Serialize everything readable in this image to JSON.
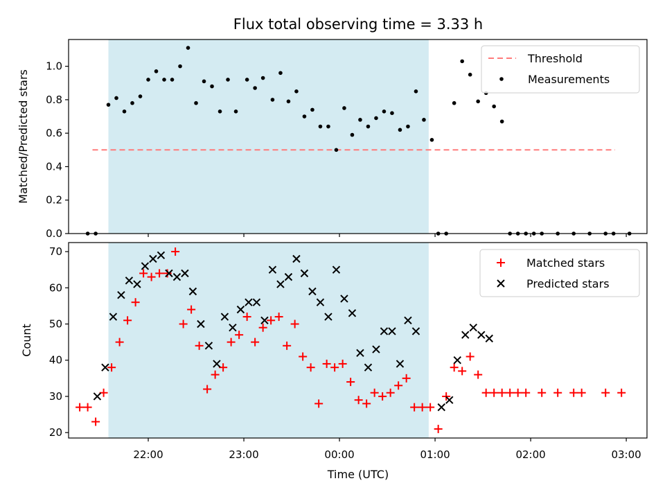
{
  "chart_data": [
    {
      "type": "scatter",
      "title": "Flux total observing time = 3.33 h",
      "xlabel": "",
      "ylabel": "Matched/Predicted stars",
      "ylim": [
        0,
        1.16
      ],
      "yticks": [
        "0.0",
        "0.2",
        "0.4",
        "0.6",
        "0.8",
        "1.0"
      ],
      "shaded_region": {
        "x_start": "21:35",
        "x_end": "00:56",
        "color": "#d4ebf2"
      },
      "threshold": {
        "name": "Threshold",
        "value": 0.5,
        "x_start": "21:25",
        "x_end": "02:53",
        "color": "#ff7b7b"
      },
      "series": [
        {
          "name": "Measurements",
          "color": "#000000",
          "points": [
            [
              "21:22",
              0.0
            ],
            [
              "21:27",
              0.0
            ],
            [
              "21:35",
              0.77
            ],
            [
              "21:40",
              0.81
            ],
            [
              "21:45",
              0.73
            ],
            [
              "21:50",
              0.78
            ],
            [
              "21:55",
              0.82
            ],
            [
              "22:00",
              0.92
            ],
            [
              "22:05",
              0.97
            ],
            [
              "22:10",
              0.92
            ],
            [
              "22:15",
              0.92
            ],
            [
              "22:20",
              1.0
            ],
            [
              "22:25",
              1.11
            ],
            [
              "22:30",
              0.78
            ],
            [
              "22:35",
              0.91
            ],
            [
              "22:40",
              0.88
            ],
            [
              "22:45",
              0.73
            ],
            [
              "22:50",
              0.92
            ],
            [
              "22:55",
              0.73
            ],
            [
              "23:02",
              0.92
            ],
            [
              "23:07",
              0.87
            ],
            [
              "23:12",
              0.93
            ],
            [
              "23:18",
              0.8
            ],
            [
              "23:23",
              0.96
            ],
            [
              "23:28",
              0.79
            ],
            [
              "23:33",
              0.85
            ],
            [
              "23:38",
              0.7
            ],
            [
              "23:43",
              0.74
            ],
            [
              "23:48",
              0.64
            ],
            [
              "23:53",
              0.64
            ],
            [
              "23:58",
              0.5
            ],
            [
              "00:03",
              0.75
            ],
            [
              "00:08",
              0.59
            ],
            [
              "00:13",
              0.68
            ],
            [
              "00:18",
              0.64
            ],
            [
              "00:23",
              0.69
            ],
            [
              "00:28",
              0.73
            ],
            [
              "00:33",
              0.72
            ],
            [
              "00:38",
              0.62
            ],
            [
              "00:43",
              0.64
            ],
            [
              "00:48",
              0.85
            ],
            [
              "00:53",
              0.68
            ],
            [
              "00:58",
              0.56
            ],
            [
              "01:02",
              0.0
            ],
            [
              "01:07",
              0.0
            ],
            [
              "01:12",
              0.78
            ],
            [
              "01:17",
              1.03
            ],
            [
              "01:22",
              0.95
            ],
            [
              "01:27",
              0.79
            ],
            [
              "01:32",
              0.84
            ],
            [
              "01:37",
              0.76
            ],
            [
              "01:42",
              0.67
            ],
            [
              "01:47",
              0.0
            ],
            [
              "01:52",
              0.0
            ],
            [
              "01:57",
              0.0
            ],
            [
              "02:02",
              0.0
            ],
            [
              "02:07",
              0.0
            ],
            [
              "02:17",
              0.0
            ],
            [
              "02:27",
              0.0
            ],
            [
              "02:37",
              0.0
            ],
            [
              "02:47",
              0.0
            ],
            [
              "02:52",
              0.0
            ],
            [
              "03:02",
              0.0
            ]
          ]
        }
      ],
      "legend": {
        "placement": "top-right",
        "entries": [
          "Threshold",
          "Measurements"
        ]
      }
    },
    {
      "type": "scatter",
      "title": "",
      "xlabel": "Time (UTC)",
      "ylabel": "Count",
      "ylim": [
        18.5,
        72.5
      ],
      "yticks": [
        "20",
        "30",
        "40",
        "50",
        "60",
        "70"
      ],
      "xticks": [
        "22:00",
        "23:00",
        "00:00",
        "01:00",
        "02:00",
        "03:00"
      ],
      "shaded_region": {
        "x_start": "21:35",
        "x_end": "00:56",
        "color": "#d4ebf2"
      },
      "series": [
        {
          "name": "Matched stars",
          "marker": "plus",
          "color": "#ff0000",
          "points": [
            [
              "21:17",
              27
            ],
            [
              "21:22",
              27
            ],
            [
              "21:27",
              23
            ],
            [
              "21:32",
              31
            ],
            [
              "21:37",
              38
            ],
            [
              "21:42",
              45
            ],
            [
              "21:47",
              51
            ],
            [
              "21:52",
              56
            ],
            [
              "21:57",
              64
            ],
            [
              "22:02",
              63
            ],
            [
              "22:07",
              64
            ],
            [
              "22:12",
              64
            ],
            [
              "22:17",
              70
            ],
            [
              "22:22",
              50
            ],
            [
              "22:27",
              54
            ],
            [
              "22:32",
              44
            ],
            [
              "22:37",
              32
            ],
            [
              "22:42",
              36
            ],
            [
              "22:47",
              38
            ],
            [
              "22:52",
              45
            ],
            [
              "22:57",
              47
            ],
            [
              "23:02",
              52
            ],
            [
              "23:07",
              45
            ],
            [
              "23:12",
              49
            ],
            [
              "23:17",
              51
            ],
            [
              "23:22",
              52
            ],
            [
              "23:27",
              44
            ],
            [
              "23:32",
              50
            ],
            [
              "23:37",
              41
            ],
            [
              "23:42",
              38
            ],
            [
              "23:47",
              28
            ],
            [
              "23:52",
              39
            ],
            [
              "23:57",
              38
            ],
            [
              "00:02",
              39
            ],
            [
              "00:07",
              34
            ],
            [
              "00:12",
              29
            ],
            [
              "00:17",
              28
            ],
            [
              "00:22",
              31
            ],
            [
              "00:27",
              30
            ],
            [
              "00:32",
              31
            ],
            [
              "00:37",
              33
            ],
            [
              "00:42",
              35
            ],
            [
              "00:47",
              27
            ],
            [
              "00:52",
              27
            ],
            [
              "00:57",
              27
            ],
            [
              "01:02",
              21
            ],
            [
              "01:07",
              30
            ],
            [
              "01:12",
              38
            ],
            [
              "01:17",
              37
            ],
            [
              "01:22",
              41
            ],
            [
              "01:27",
              36
            ],
            [
              "01:32",
              31
            ],
            [
              "01:37",
              31
            ],
            [
              "01:42",
              31
            ],
            [
              "01:47",
              31
            ],
            [
              "01:52",
              31
            ],
            [
              "01:57",
              31
            ],
            [
              "02:07",
              31
            ],
            [
              "02:17",
              31
            ],
            [
              "02:27",
              31
            ],
            [
              "02:32",
              31
            ],
            [
              "02:47",
              31
            ],
            [
              "02:57",
              31
            ]
          ]
        },
        {
          "name": "Predicted stars",
          "marker": "x",
          "color": "#000000",
          "points": [
            [
              "21:28",
              30
            ],
            [
              "21:33",
              38
            ],
            [
              "21:38",
              52
            ],
            [
              "21:43",
              58
            ],
            [
              "21:48",
              62
            ],
            [
              "21:53",
              61
            ],
            [
              "21:58",
              66
            ],
            [
              "22:03",
              68
            ],
            [
              "22:08",
              69
            ],
            [
              "22:13",
              64
            ],
            [
              "22:18",
              63
            ],
            [
              "22:23",
              64
            ],
            [
              "22:28",
              59
            ],
            [
              "22:33",
              50
            ],
            [
              "22:38",
              44
            ],
            [
              "22:43",
              39
            ],
            [
              "22:48",
              52
            ],
            [
              "22:53",
              49
            ],
            [
              "22:58",
              54
            ],
            [
              "23:03",
              56
            ],
            [
              "23:08",
              56
            ],
            [
              "23:13",
              51
            ],
            [
              "23:18",
              65
            ],
            [
              "23:23",
              61
            ],
            [
              "23:28",
              63
            ],
            [
              "23:33",
              68
            ],
            [
              "23:38",
              64
            ],
            [
              "23:43",
              59
            ],
            [
              "23:48",
              56
            ],
            [
              "23:53",
              52
            ],
            [
              "23:58",
              65
            ],
            [
              "00:03",
              57
            ],
            [
              "00:08",
              53
            ],
            [
              "00:13",
              42
            ],
            [
              "00:18",
              38
            ],
            [
              "00:23",
              43
            ],
            [
              "00:28",
              48
            ],
            [
              "00:33",
              48
            ],
            [
              "00:38",
              39
            ],
            [
              "00:43",
              51
            ],
            [
              "00:48",
              48
            ],
            [
              "01:04",
              27
            ],
            [
              "01:09",
              29
            ],
            [
              "01:14",
              40
            ],
            [
              "01:19",
              47
            ],
            [
              "01:24",
              49
            ],
            [
              "01:29",
              47
            ],
            [
              "01:34",
              46
            ]
          ]
        }
      ],
      "legend": {
        "placement": "top-right",
        "entries": [
          "Matched stars",
          "Predicted stars"
        ]
      }
    }
  ]
}
